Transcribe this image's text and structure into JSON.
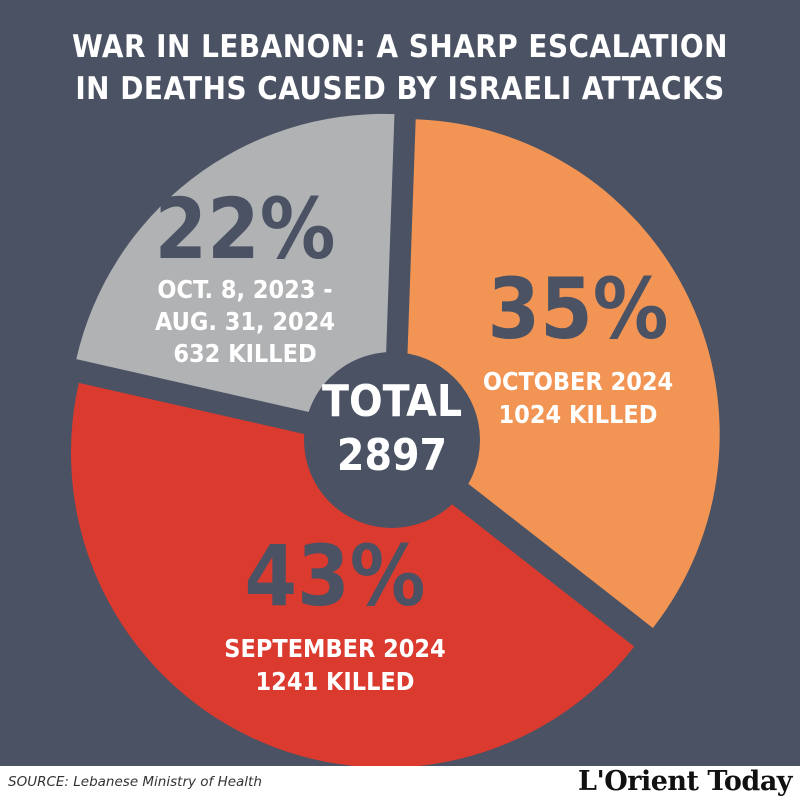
{
  "title_lines": [
    "WAR IN LEBANON: A SHARP ESCALATION",
    "IN DEATHS CAUSED BY ISRAELI ATTACKS"
  ],
  "center": {
    "line1": "TOTAL",
    "line2": "2897"
  },
  "source": "SOURCE: Lebanese Ministry of Health",
  "logo": "L'Orient Today",
  "colors": {
    "background": "#4a5264",
    "october": "#f29554",
    "september": "#db3a2f",
    "prior": "#b1b2b4",
    "center": "#4a5264"
  },
  "chart_data": {
    "type": "pie",
    "total": 2897,
    "slices": [
      {
        "id": "october",
        "percent_label": "35%",
        "value": 1024,
        "percent": 35,
        "lines": [
          "OCTOBER 2024",
          "1024 KILLED"
        ],
        "color": "#f29554"
      },
      {
        "id": "september",
        "percent_label": "43%",
        "value": 1241,
        "percent": 43,
        "lines": [
          "SEPTEMBER 2024",
          "1241 KILLED"
        ],
        "color": "#db3a2f"
      },
      {
        "id": "prior",
        "percent_label": "22%",
        "value": 632,
        "percent": 22,
        "lines": [
          "OCT. 8, 2023 -",
          "AUG. 31, 2024",
          "632 KILLED"
        ],
        "color": "#b1b2b4"
      }
    ]
  }
}
